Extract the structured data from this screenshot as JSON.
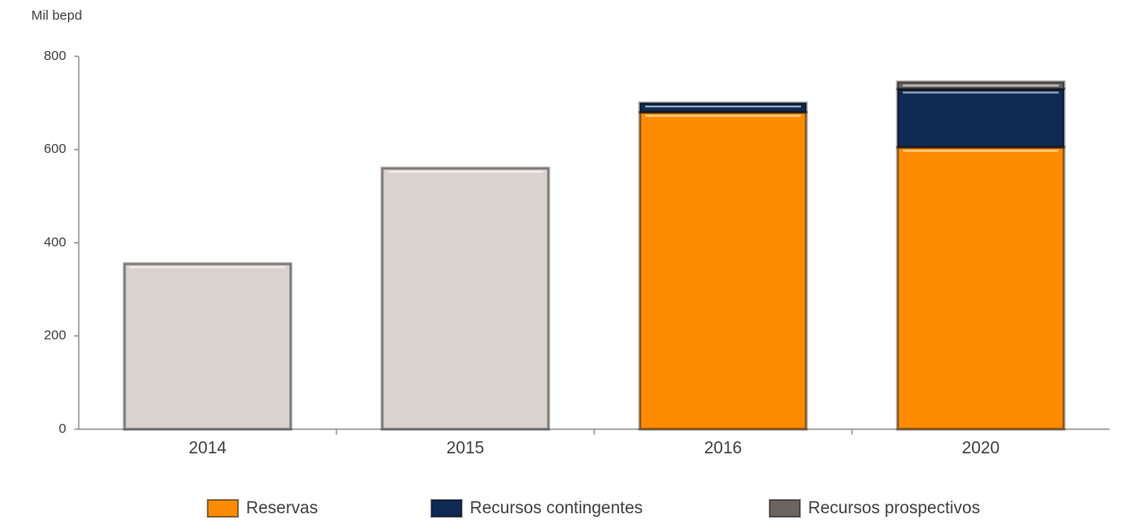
{
  "chart_data": {
    "type": "bar",
    "stacked": true,
    "y_label": "Mil bepd",
    "categories": [
      "2014",
      "2015",
      "2016",
      "2020"
    ],
    "series": [
      {
        "color": "#d9d3ce",
        "values": [
          355,
          560,
          null,
          null
        ]
      },
      {
        "name": "Reservas",
        "color": "#ff8c00",
        "values": [
          null,
          null,
          680,
          605
        ]
      },
      {
        "name": "Recursos contingentes",
        "color": "#0f2a52",
        "values": [
          null,
          null,
          20,
          125
        ]
      },
      {
        "name": "Recursos prospectivos",
        "color": "#6b6560",
        "values": [
          null,
          null,
          null,
          15
        ]
      }
    ],
    "ylim": [
      0,
      800
    ],
    "yticks": [
      0,
      200,
      400,
      600,
      800
    ],
    "grid": false,
    "legend": "bottom"
  }
}
